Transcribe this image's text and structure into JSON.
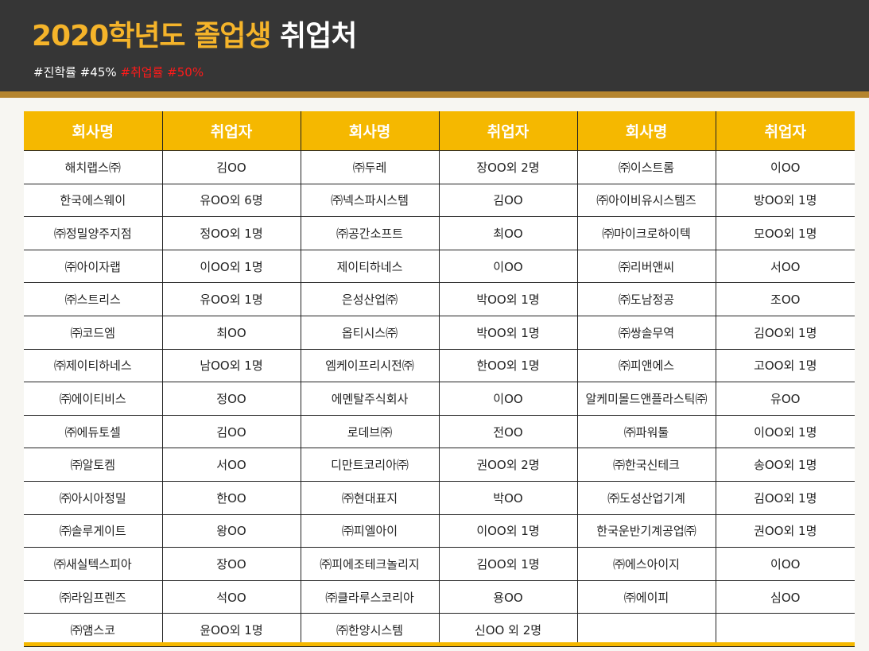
{
  "header": {
    "title_year": "2020학년도 졸업생",
    "title_rest": "취업처",
    "tag_advance": "#진학률 #45%",
    "tag_employ": "#취업률 #50%"
  },
  "table": {
    "columns": [
      "회사명",
      "취업자",
      "회사명",
      "취업자",
      "회사명",
      "취업자"
    ],
    "rows": [
      [
        "해치랩스㈜",
        "김OO",
        "㈜두레",
        "장OO외 2명",
        "㈜이스트롬",
        "이OO"
      ],
      [
        "한국에스웨이",
        "유OO외 6명",
        "㈜넥스파시스템",
        "김OO",
        "㈜아이비유시스템즈",
        "방OO외 1명"
      ],
      [
        "㈜정밀양주지점",
        "정OO외 1명",
        "㈜공간소프트",
        "최OO",
        "㈜마이크로하이텍",
        "모OO외 1명"
      ],
      [
        "㈜아이자랩",
        "이OO외 1명",
        "제이티하네스",
        "이OO",
        "㈜리버앤씨",
        "서OO"
      ],
      [
        "㈜스트리스",
        "유OO외 1명",
        "은성산업㈜",
        "박OO외 1명",
        "㈜도남정공",
        "조OO"
      ],
      [
        "㈜코드엠",
        "최OO",
        "옵티시스㈜",
        "박OO외 1명",
        "㈜쌍솔무역",
        "김OO외 1명"
      ],
      [
        "㈜제이티하네스",
        "남OO외 1명",
        "엠케이프리시전㈜",
        "한OO외 1명",
        "㈜피앤에스",
        "고OO외 1명"
      ],
      [
        "㈜에이티비스",
        "정OO",
        "에멘탈주식회사",
        "이OO",
        "알케미몰드앤플라스틱㈜",
        "유OO"
      ],
      [
        "㈜에듀토셀",
        "김OO",
        "로데브㈜",
        "전OO",
        "㈜파워툴",
        "이OO외 1명"
      ],
      [
        "㈜알토켐",
        "서OO",
        "디만트코리아㈜",
        "권OO외 2명",
        "㈜한국신테크",
        "송OO외 1명"
      ],
      [
        "㈜아시아정밀",
        "한OO",
        "㈜현대표지",
        "박OO",
        "㈜도성산업기계",
        "김OO외 1명"
      ],
      [
        "㈜솔루게이트",
        "왕OO",
        "㈜피엘아이",
        "이OO외 1명",
        "한국운반기계공업㈜",
        "권OO외 1명"
      ],
      [
        "㈜새실텍스피아",
        "장OO",
        "㈜피에조테크놀리지",
        "김OO외 1명",
        "㈜에스아이지",
        "이OO"
      ],
      [
        "㈜라임프렌즈",
        "석OO",
        "㈜클라루스코리아",
        "용OO",
        "㈜에이피",
        "심OO"
      ],
      [
        "㈜앰스코",
        "윤OO외 1명",
        "㈜한양시스템",
        "신OO 외 2명",
        "",
        ""
      ]
    ]
  }
}
